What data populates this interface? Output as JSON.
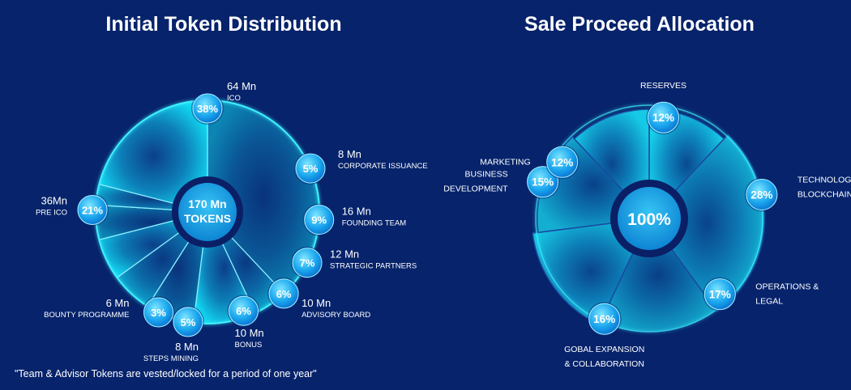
{
  "chart_data": [
    {
      "type": "pie",
      "title": "Initial Token Distribution",
      "center_label": [
        "170 Mn",
        "TOKENS"
      ],
      "footnote": "\"Team & Advisor Tokens are vested/locked for a period of one year\"",
      "slices": [
        {
          "pct": "38%",
          "value": 38,
          "amount": "64 Mn",
          "label": "ICO"
        },
        {
          "pct": "5%",
          "value": 5,
          "amount": "8 Mn",
          "label": "CORPORATE ISSUANCE"
        },
        {
          "pct": "9%",
          "value": 9,
          "amount": "16 Mn",
          "label": "FOUNDING TEAM"
        },
        {
          "pct": "7%",
          "value": 7,
          "amount": "12 Mn",
          "label": "STRATEGIC PARTNERS"
        },
        {
          "pct": "6%",
          "value": 6,
          "amount": "10 Mn",
          "label": "ADVISORY BOARD"
        },
        {
          "pct": "6%",
          "value": 6,
          "amount": "10 Mn",
          "label": "BONUS"
        },
        {
          "pct": "5%",
          "value": 5,
          "amount": "8 Mn",
          "label": "STEPS MINING"
        },
        {
          "pct": "3%",
          "value": 3,
          "amount": "6 Mn",
          "label": "BOUNTY PROGRAMME"
        },
        {
          "pct": "21%",
          "value": 21,
          "amount": "36Mn",
          "label": "PRE ICO"
        }
      ]
    },
    {
      "type": "pie",
      "title": "Sale Proceed Allocation",
      "center_label": [
        "100%"
      ],
      "slices": [
        {
          "pct": "12%",
          "value": 12,
          "label": [
            "RESERVES"
          ]
        },
        {
          "pct": "28%",
          "value": 28,
          "label": [
            "TECHNOLOGY &",
            "BLOCKCHAIN"
          ]
        },
        {
          "pct": "17%",
          "value": 17,
          "label": [
            "OPERATIONS &",
            "LEGAL"
          ]
        },
        {
          "pct": "16%",
          "value": 16,
          "label": [
            "GOBAL EXPANSION",
            "& COLLABORATION"
          ]
        },
        {
          "pct": "15%",
          "value": 15,
          "label": [
            "BUSINESS",
            "DEVELOPMENT"
          ]
        },
        {
          "pct": "12%",
          "value": 12,
          "label": [
            "MARKETING"
          ]
        }
      ]
    }
  ],
  "colors": {
    "background": "#06236b",
    "accent": "#1ee0ff",
    "badge_light": "#5ad8ff",
    "badge_dark": "#0a7fd8",
    "center_ring": "#0a1f66"
  }
}
